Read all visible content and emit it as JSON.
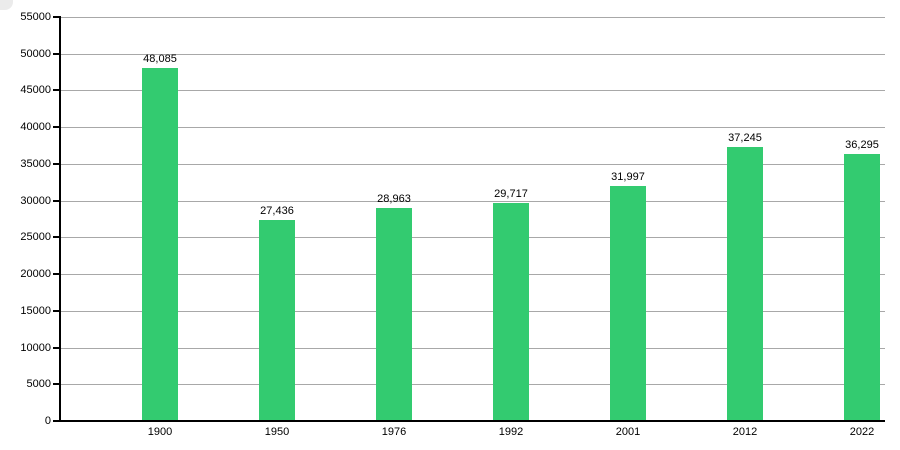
{
  "chart_data": {
    "type": "bar",
    "categories": [
      "1900",
      "1950",
      "1976",
      "1992",
      "2001",
      "2012",
      "2022"
    ],
    "values": [
      48085,
      27436,
      28963,
      29717,
      31997,
      37245,
      36295
    ],
    "value_labels": [
      "48,085",
      "27,436",
      "28,963",
      "29,717",
      "31,997",
      "37,245",
      "36,295"
    ],
    "title": "",
    "xlabel": "",
    "ylabel": "",
    "ylim": [
      0,
      55000
    ],
    "ytick_step": 5000,
    "ytick_labels": [
      "0",
      "5000",
      "10000",
      "15000",
      "20000",
      "25000",
      "30000",
      "35000",
      "40000",
      "45000",
      "50000",
      "55000"
    ],
    "grid": "horizontal",
    "legend_position": "none",
    "colors": {
      "bar": "#33cb70",
      "gridline": "#a8a8a8",
      "axis": "#000000",
      "text": "#000000",
      "background": "#ffffff"
    }
  }
}
